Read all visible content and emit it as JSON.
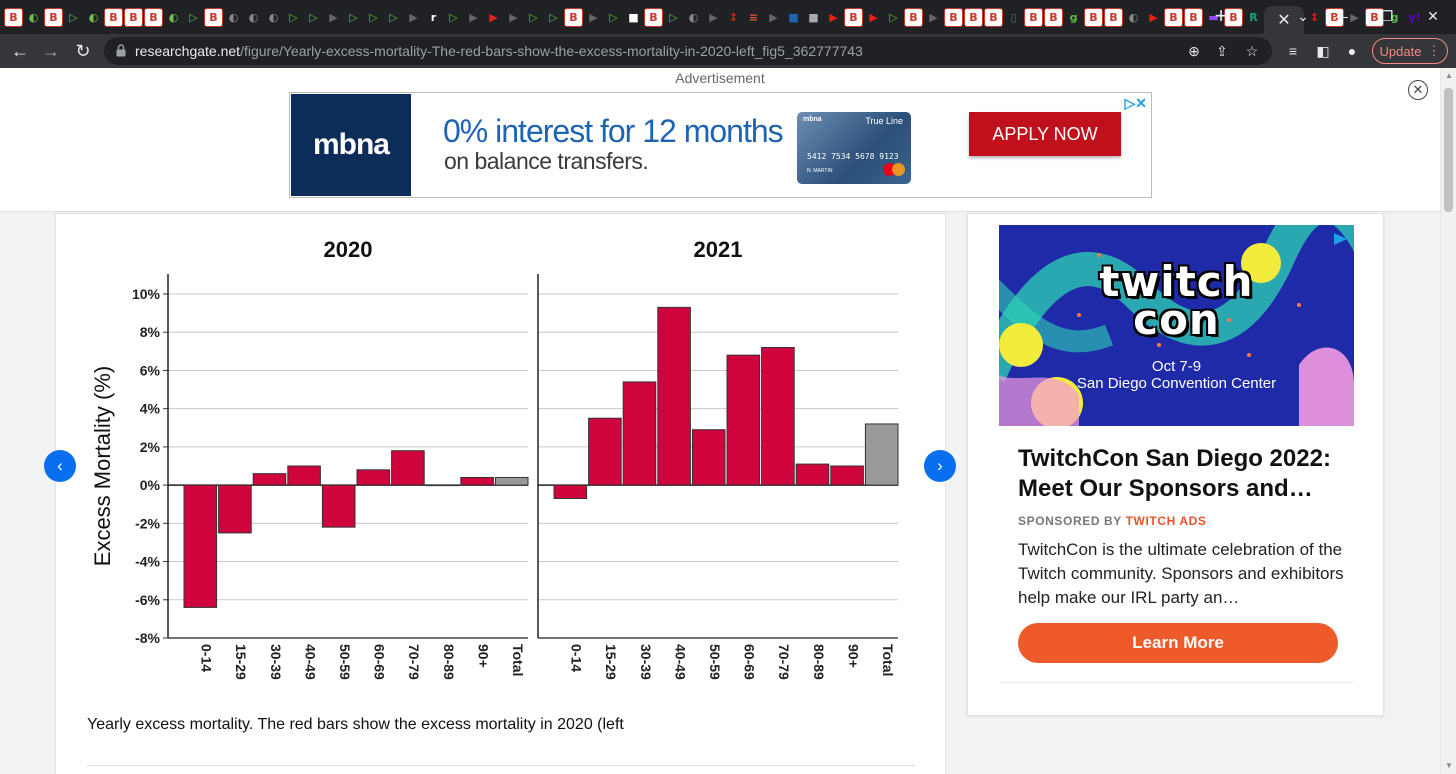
{
  "browser": {
    "tab_favicons": [
      {
        "g": "B",
        "c": "#c8392b"
      },
      {
        "g": "◐",
        "c": "#6fbf4b"
      },
      {
        "g": "B",
        "c": "#c8392b"
      },
      {
        "g": "▷",
        "c": "#55b946"
      },
      {
        "g": "◐",
        "c": "#6fbf4b"
      },
      {
        "g": "B",
        "c": "#c8392b"
      },
      {
        "g": "B",
        "c": "#c8392b"
      },
      {
        "g": "B",
        "c": "#c8392b"
      },
      {
        "g": "◐",
        "c": "#6fbf4b"
      },
      {
        "g": "▷",
        "c": "#55b946"
      },
      {
        "g": "B",
        "c": "#c8392b"
      },
      {
        "g": "◐",
        "c": "#888888"
      },
      {
        "g": "◐",
        "c": "#888888"
      },
      {
        "g": "◐",
        "c": "#888888"
      },
      {
        "g": "▷",
        "c": "#55b946"
      },
      {
        "g": "▷",
        "c": "#55b946"
      },
      {
        "g": "▶",
        "c": "#666666"
      },
      {
        "g": "▷",
        "c": "#55b946"
      },
      {
        "g": "▷",
        "c": "#55b946"
      },
      {
        "g": "▷",
        "c": "#55b946"
      },
      {
        "g": "▶",
        "c": "#666666"
      },
      {
        "g": "r",
        "c": "#ffffff"
      },
      {
        "g": "▷",
        "c": "#55b946"
      },
      {
        "g": "▶",
        "c": "#666666"
      },
      {
        "g": "▶",
        "c": "#e62117"
      },
      {
        "g": "▶",
        "c": "#666666"
      },
      {
        "g": "▷",
        "c": "#55b946"
      },
      {
        "g": "▷",
        "c": "#55b946"
      },
      {
        "g": "B",
        "c": "#c8392b"
      },
      {
        "g": "▶",
        "c": "#666666"
      },
      {
        "g": "▷",
        "c": "#55b946"
      },
      {
        "g": "■",
        "c": "#ffffff"
      },
      {
        "g": "B",
        "c": "#c8392b"
      },
      {
        "g": "▷",
        "c": "#55b946"
      },
      {
        "g": "◐",
        "c": "#888888"
      },
      {
        "g": "▶",
        "c": "#666666"
      },
      {
        "g": "↕",
        "c": "#e62117"
      },
      {
        "g": "≡",
        "c": "#e8542a"
      },
      {
        "g": "▶",
        "c": "#666666"
      },
      {
        "g": "■",
        "c": "#1e64b4"
      },
      {
        "g": "■",
        "c": "#aaaaaa"
      },
      {
        "g": "▶",
        "c": "#e62117"
      },
      {
        "g": "B",
        "c": "#c8392b"
      },
      {
        "g": "▶",
        "c": "#e62117"
      },
      {
        "g": "▷",
        "c": "#55b946"
      },
      {
        "g": "B",
        "c": "#c8392b"
      },
      {
        "g": "▶",
        "c": "#666666"
      },
      {
        "g": "B",
        "c": "#c8392b"
      },
      {
        "g": "B",
        "c": "#c8392b"
      },
      {
        "g": "B",
        "c": "#c8392b"
      },
      {
        "g": "▯",
        "c": "#3c7a7a"
      },
      {
        "g": "B",
        "c": "#c8392b"
      },
      {
        "g": "B",
        "c": "#c8392b"
      },
      {
        "g": "g",
        "c": "#55b946"
      },
      {
        "g": "B",
        "c": "#c8392b"
      },
      {
        "g": "B",
        "c": "#c8392b"
      },
      {
        "g": "◐",
        "c": "#888888"
      },
      {
        "g": "▶",
        "c": "#e62117"
      },
      {
        "g": "B",
        "c": "#c8392b"
      },
      {
        "g": "B",
        "c": "#c8392b"
      },
      {
        "g": "▬",
        "c": "#9146ff"
      },
      {
        "g": "B",
        "c": "#c8392b"
      },
      {
        "g": "R",
        "c": "#10a37f"
      }
    ],
    "tab_favicons_after": [
      {
        "g": "↕",
        "c": "#e62117"
      },
      {
        "g": "B",
        "c": "#c8392b"
      },
      {
        "g": "▶",
        "c": "#666666"
      },
      {
        "g": "B",
        "c": "#c8392b"
      },
      {
        "g": "g",
        "c": "#55b946"
      },
      {
        "g": "y!",
        "c": "#6001d2"
      }
    ],
    "url_host": "researchgate.net",
    "url_path": "/figure/Yearly-excess-mortality-The-red-bars-show-the-excess-mortality-in-2020-left_fig5_362777743",
    "update_label": "Update"
  },
  "top_ad": {
    "label": "Advertisement",
    "brand": "mbna",
    "headline": "0% interest for 12 months",
    "subline": "on balance transfers.",
    "card_brand": "mbna",
    "card_product": "True Line",
    "card_number": "5412 7534 5678 9123",
    "card_name": "N. MARTIN",
    "cta": "APPLY NOW",
    "accent": "#c0101c"
  },
  "figure": {
    "caption": "Yearly excess mortality. The red bars show the excess mortality in 2020 (left"
  },
  "chart_data": [
    {
      "type": "bar",
      "title": "2020",
      "ylabel": "Excess Mortality (%)",
      "ylim": [
        -8,
        10
      ],
      "yticks": [
        10,
        8,
        6,
        4,
        2,
        0,
        -2,
        -4,
        -6,
        -8
      ],
      "ytick_labels": [
        "10%",
        "8%",
        "6%",
        "4%",
        "2%",
        "0%",
        "-2%",
        "-4%",
        "-6%",
        "-8%"
      ],
      "grid": true,
      "categories": [
        "0-14",
        "15-29",
        "30-39",
        "40-49",
        "50-59",
        "60-69",
        "70-79",
        "80-89",
        "90+",
        "Total"
      ],
      "values": [
        -6.4,
        -2.5,
        0.6,
        1.0,
        -2.2,
        0.8,
        1.8,
        0.0,
        0.4,
        0.4
      ],
      "colors": [
        "#d0043c",
        "#d0043c",
        "#d0043c",
        "#d0043c",
        "#d0043c",
        "#d0043c",
        "#d0043c",
        "#d0043c",
        "#d0043c",
        "#9a9a9a"
      ]
    },
    {
      "type": "bar",
      "title": "2021",
      "ylim": [
        -8,
        10
      ],
      "grid": true,
      "categories": [
        "0-14",
        "15-29",
        "30-39",
        "40-49",
        "50-59",
        "60-69",
        "70-79",
        "80-89",
        "90+",
        "Total"
      ],
      "values": [
        -0.7,
        3.5,
        5.4,
        9.3,
        2.9,
        6.8,
        7.2,
        1.1,
        1.0,
        3.2
      ],
      "colors": [
        "#d0043c",
        "#d0043c",
        "#d0043c",
        "#d0043c",
        "#d0043c",
        "#d0043c",
        "#d0043c",
        "#d0043c",
        "#d0043c",
        "#9a9a9a"
      ]
    }
  ],
  "side_ad": {
    "logo_line1": "twitch",
    "logo_line2": "con",
    "date": "Oct 7-9",
    "venue": "San Diego Convention Center",
    "title": "TwitchCon San Diego 2022: Meet Our Sponsors and…",
    "sponsored_prefix": "SPONSORED BY",
    "sponsored_brand": "TWITCH ADS",
    "description": "TwitchCon is the ultimate celebration of the Twitch community. Sponsors and exhibitors help make our IRL party an…",
    "cta": "Learn More",
    "accent": "#ef5a2a"
  }
}
